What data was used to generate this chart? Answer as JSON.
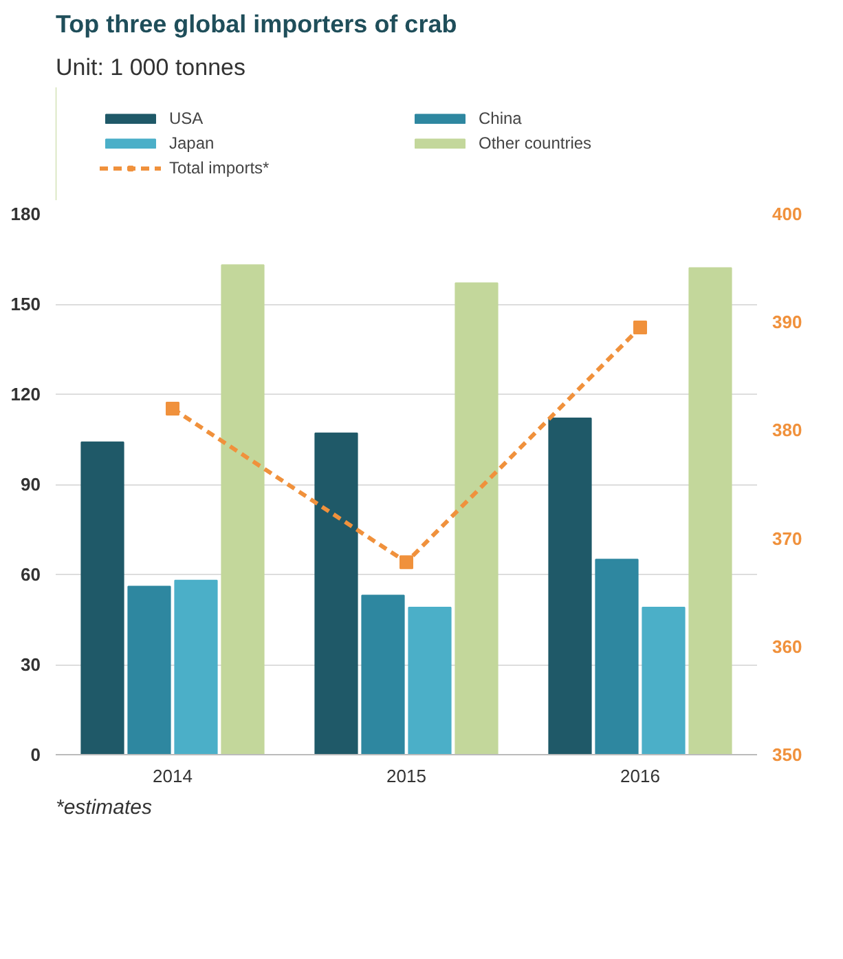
{
  "chart_data": {
    "type": "bar",
    "title": "Top three global importers of crab",
    "subtitle": "Unit: 1 000 tonnes",
    "categories": [
      "2014",
      "2015",
      "2016"
    ],
    "series": [
      {
        "name": "USA",
        "color": "#1f5968",
        "values": [
          104,
          107,
          112
        ]
      },
      {
        "name": "China",
        "color": "#2e87a0",
        "values": [
          56,
          53,
          65
        ]
      },
      {
        "name": "Japan",
        "color": "#4bafc8",
        "values": [
          58,
          49,
          49
        ]
      },
      {
        "name": "Other countries",
        "color": "#c3d79b",
        "values": [
          163,
          157,
          162
        ]
      },
      {
        "name": "Total imports*",
        "color": "#f0913c",
        "type": "line",
        "axis": "y2",
        "marker": "square",
        "line_style": "dashed",
        "values": [
          382,
          367.8,
          389.5
        ]
      }
    ],
    "ylim": [
      0,
      180
    ],
    "yticks": [
      0,
      30,
      60,
      90,
      120,
      150,
      180
    ],
    "y2lim": [
      350,
      400
    ],
    "y2ticks": [
      350,
      360,
      370,
      380,
      390,
      400
    ],
    "grid": "y",
    "legend": "top",
    "annotations": [
      "*estimates"
    ]
  }
}
